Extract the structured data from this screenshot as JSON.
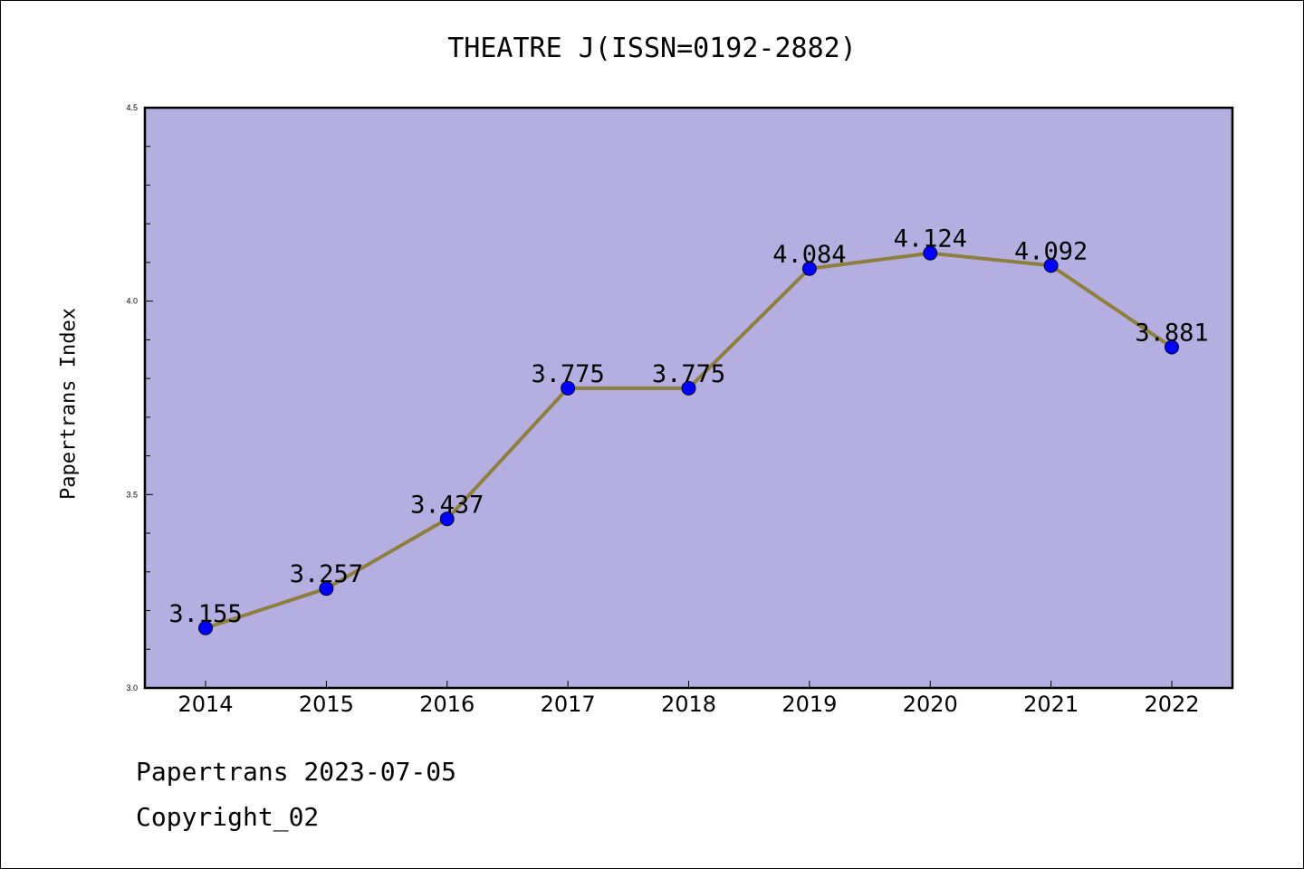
{
  "chart_data": {
    "type": "line",
    "title": "THEATRE J(ISSN=0192-2882)",
    "ylabel": "Papertrans Index",
    "xlabel": "",
    "ylim": [
      3.0,
      4.5
    ],
    "yticks": [
      "3.0",
      "3.5",
      "4.0",
      "4.5"
    ],
    "categories": [
      "2014",
      "2015",
      "2016",
      "2017",
      "2018",
      "2019",
      "2020",
      "2021",
      "2022"
    ],
    "values": [
      3.155,
      3.257,
      3.437,
      3.775,
      3.775,
      4.084,
      4.124,
      4.092,
      3.881
    ],
    "value_labels": [
      "3.155",
      "3.257",
      "3.437",
      "3.775",
      "3.775",
      "4.084",
      "4.124",
      "4.092",
      "3.881"
    ],
    "grid": false,
    "colors": {
      "plot_bg": "#b5afe1",
      "line": "#8f7f3f",
      "marker": "#0000ff"
    }
  },
  "footer": {
    "line1": "Papertrans 2023-07-05",
    "line2": "Copyright_02"
  }
}
